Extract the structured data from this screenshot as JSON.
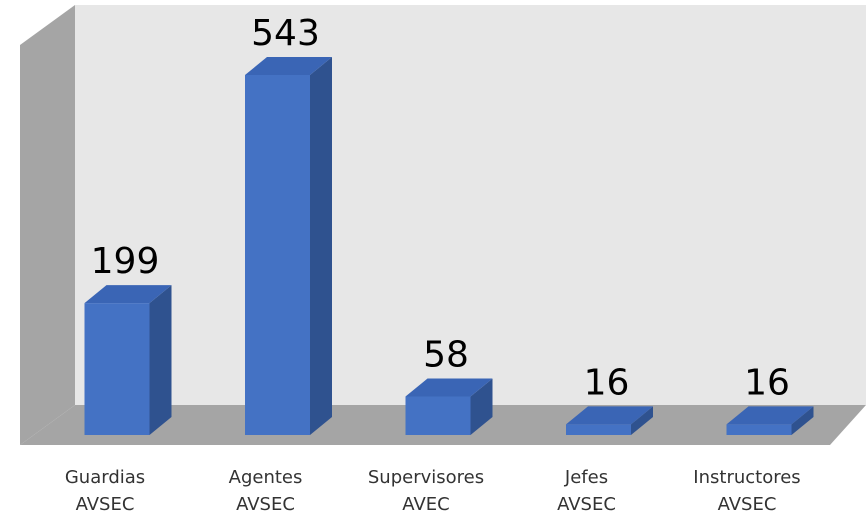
{
  "chart_data": {
    "type": "bar3d",
    "categories": [
      [
        "Guardias",
        "AVSEC"
      ],
      [
        "Agentes",
        "AVSEC"
      ],
      [
        "Supervisores",
        "AVEC"
      ],
      [
        "Jefes",
        "AVSEC"
      ],
      [
        "Instructores",
        "AVSEC"
      ]
    ],
    "values": [
      199,
      543,
      58,
      16,
      16
    ],
    "color": "#4472c4"
  }
}
